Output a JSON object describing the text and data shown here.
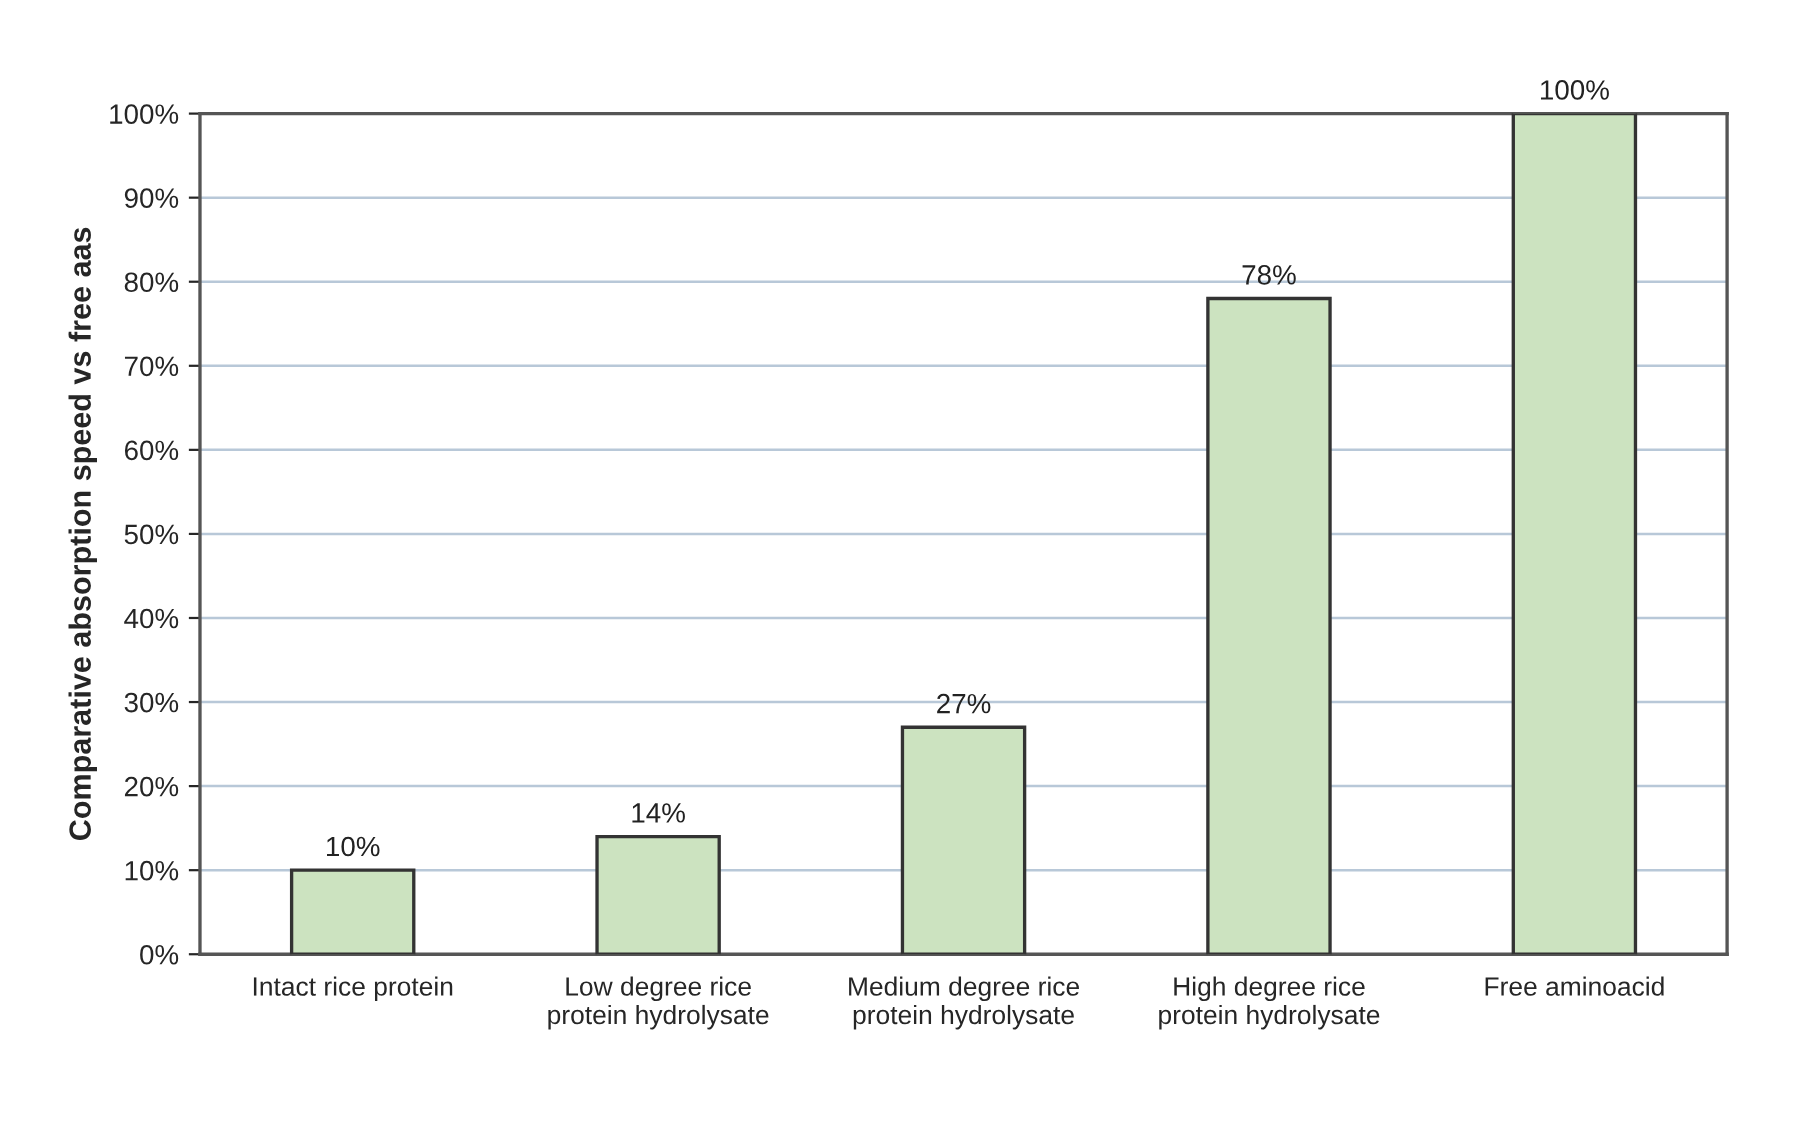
{
  "chart_data": {
    "type": "bar",
    "ylabel": "Comparative absorption speed vs free aas",
    "categories": [
      "Intact rice protein",
      "Low degree rice\nprotein hydrolysate",
      "Medium degree rice\nprotein hydrolysate",
      "High degree rice\nprotein hydrolysate",
      "Free aminoacid"
    ],
    "values": [
      10,
      14,
      27,
      78,
      100
    ],
    "value_labels": [
      "10%",
      "14%",
      "27%",
      "78%",
      "100%"
    ],
    "color": "#cce3c0",
    "ylim": [
      0,
      100
    ],
    "yticks": [
      {
        "value": 0,
        "label": "0%"
      },
      {
        "value": 10,
        "label": "10%"
      },
      {
        "value": 20,
        "label": "20%"
      },
      {
        "value": 30,
        "label": "30%"
      },
      {
        "value": 40,
        "label": "40%"
      },
      {
        "value": 50,
        "label": "50%"
      },
      {
        "value": 60,
        "label": "60%"
      },
      {
        "value": 70,
        "label": "70%"
      },
      {
        "value": 80,
        "label": "80%"
      },
      {
        "value": 90,
        "label": "90%"
      },
      {
        "value": 100,
        "label": "100%"
      }
    ],
    "grid": "y",
    "legend": false
  }
}
